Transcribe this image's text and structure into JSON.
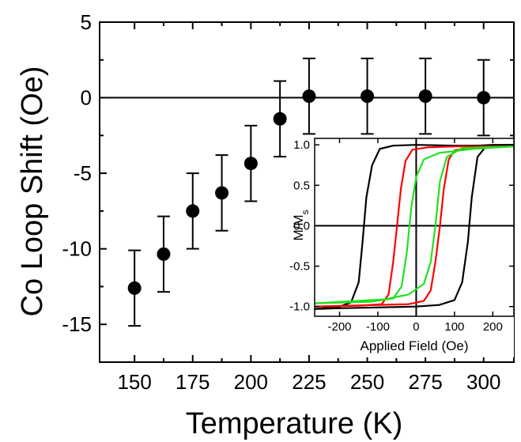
{
  "chart_data": [
    {
      "type": "scatter",
      "title": "",
      "xlabel": "Temperature (K)",
      "ylabel": "Co Loop Shift (Oe)",
      "xlim": [
        135,
        313
      ],
      "ylim": [
        -17.5,
        5
      ],
      "x_ticks": [
        150,
        175,
        200,
        225,
        250,
        275,
        300
      ],
      "x_minor_ticks": [
        162.5,
        187.5,
        212.5,
        237.5,
        262.5,
        287.5
      ],
      "y_ticks": [
        5,
        0,
        -5,
        -10,
        -15
      ],
      "y_minor_ticks": [
        2.5,
        -2.5,
        -7.5,
        -12.5
      ],
      "zero_line": true,
      "grid": false,
      "series": [
        {
          "marker": "filled-circle",
          "color": "#000000",
          "points": [
            {
              "x": 150,
              "y": -12.6,
              "err": 2.5
            },
            {
              "x": 162.5,
              "y": -10.35,
              "err": 2.5
            },
            {
              "x": 175,
              "y": -7.5,
              "err": 2.5
            },
            {
              "x": 187.5,
              "y": -6.3,
              "err": 2.5
            },
            {
              "x": 200,
              "y": -4.35,
              "err": 2.5
            },
            {
              "x": 212.5,
              "y": -1.4,
              "err": 2.5
            },
            {
              "x": 225,
              "y": 0.1,
              "err": 2.5
            },
            {
              "x": 250,
              "y": 0.1,
              "err": 2.5
            },
            {
              "x": 275,
              "y": 0.1,
              "err": 2.5
            },
            {
              "x": 300,
              "y": 0.0,
              "err": 2.5
            }
          ]
        }
      ]
    },
    {
      "type": "line",
      "title": "",
      "xlabel": "Applied Field (Oe)",
      "ylabel_main": "M/M",
      "ylabel_sub": "s",
      "xlim": [
        -265,
        255
      ],
      "ylim": [
        -1.12,
        1.08
      ],
      "x_ticks": [
        -200,
        -100,
        0,
        100,
        200
      ],
      "y_ticks": [
        1.0,
        0.5,
        0.0,
        -0.5,
        -1.0
      ],
      "y_tick_labels": [
        "1.0",
        "0.5",
        "0.0",
        "-0.5",
        "-1.0"
      ],
      "zero_lines": true,
      "series": [
        {
          "color": "#000000",
          "branches": [
            [
              [
                -265,
                -1.03
              ],
              [
                -200,
                -1.0
              ],
              [
                -170,
                -0.95
              ],
              [
                -150,
                -0.7
              ],
              [
                -140,
                -0.2
              ],
              [
                -130,
                0.35
              ],
              [
                -115,
                0.75
              ],
              [
                -95,
                0.95
              ],
              [
                -60,
                0.99
              ],
              [
                0,
                1.0
              ],
              [
                100,
                0.99
              ],
              [
                160,
                0.99
              ],
              [
                200,
                1.0
              ],
              [
                255,
                1.0
              ]
            ],
            [
              [
                255,
                1.0
              ],
              [
                200,
                0.99
              ],
              [
                180,
                0.97
              ],
              [
                160,
                0.85
              ],
              [
                145,
                0.35
              ],
              [
                135,
                -0.2
              ],
              [
                120,
                -0.7
              ],
              [
                100,
                -0.92
              ],
              [
                60,
                -0.98
              ],
              [
                0,
                -1.0
              ],
              [
                -100,
                -1.01
              ],
              [
                -200,
                -1.02
              ],
              [
                -265,
                -1.03
              ]
            ]
          ]
        },
        {
          "color": "#ff0000",
          "branches": [
            [
              [
                -265,
                -1.0
              ],
              [
                -150,
                -0.99
              ],
              [
                -90,
                -0.97
              ],
              [
                -72,
                -0.85
              ],
              [
                -60,
                -0.45
              ],
              [
                -50,
                0.0
              ],
              [
                -40,
                0.45
              ],
              [
                -28,
                0.8
              ],
              [
                -10,
                0.94
              ],
              [
                30,
                0.97
              ],
              [
                100,
                0.98
              ],
              [
                255,
                0.98
              ]
            ],
            [
              [
                255,
                0.98
              ],
              [
                140,
                0.97
              ],
              [
                100,
                0.93
              ],
              [
                85,
                0.82
              ],
              [
                72,
                0.45
              ],
              [
                62,
                0.0
              ],
              [
                50,
                -0.45
              ],
              [
                38,
                -0.8
              ],
              [
                20,
                -0.93
              ],
              [
                -20,
                -0.97
              ],
              [
                -265,
                -1.0
              ]
            ]
          ]
        },
        {
          "color": "#22e022",
          "branches": [
            [
              [
                -265,
                -0.96
              ],
              [
                -120,
                -0.94
              ],
              [
                -60,
                -0.9
              ],
              [
                -38,
                -0.75
              ],
              [
                -25,
                -0.35
              ],
              [
                -12,
                0.25
              ],
              [
                0,
                0.6
              ],
              [
                20,
                0.82
              ],
              [
                60,
                0.9
              ],
              [
                150,
                0.95
              ],
              [
                255,
                0.98
              ]
            ],
            [
              [
                255,
                0.98
              ],
              [
                120,
                0.96
              ],
              [
                80,
                0.85
              ],
              [
                62,
                0.55
              ],
              [
                50,
                0.0
              ],
              [
                38,
                -0.45
              ],
              [
                20,
                -0.72
              ],
              [
                -20,
                -0.85
              ],
              [
                -80,
                -0.91
              ],
              [
                -265,
                -0.96
              ]
            ]
          ]
        }
      ]
    }
  ]
}
